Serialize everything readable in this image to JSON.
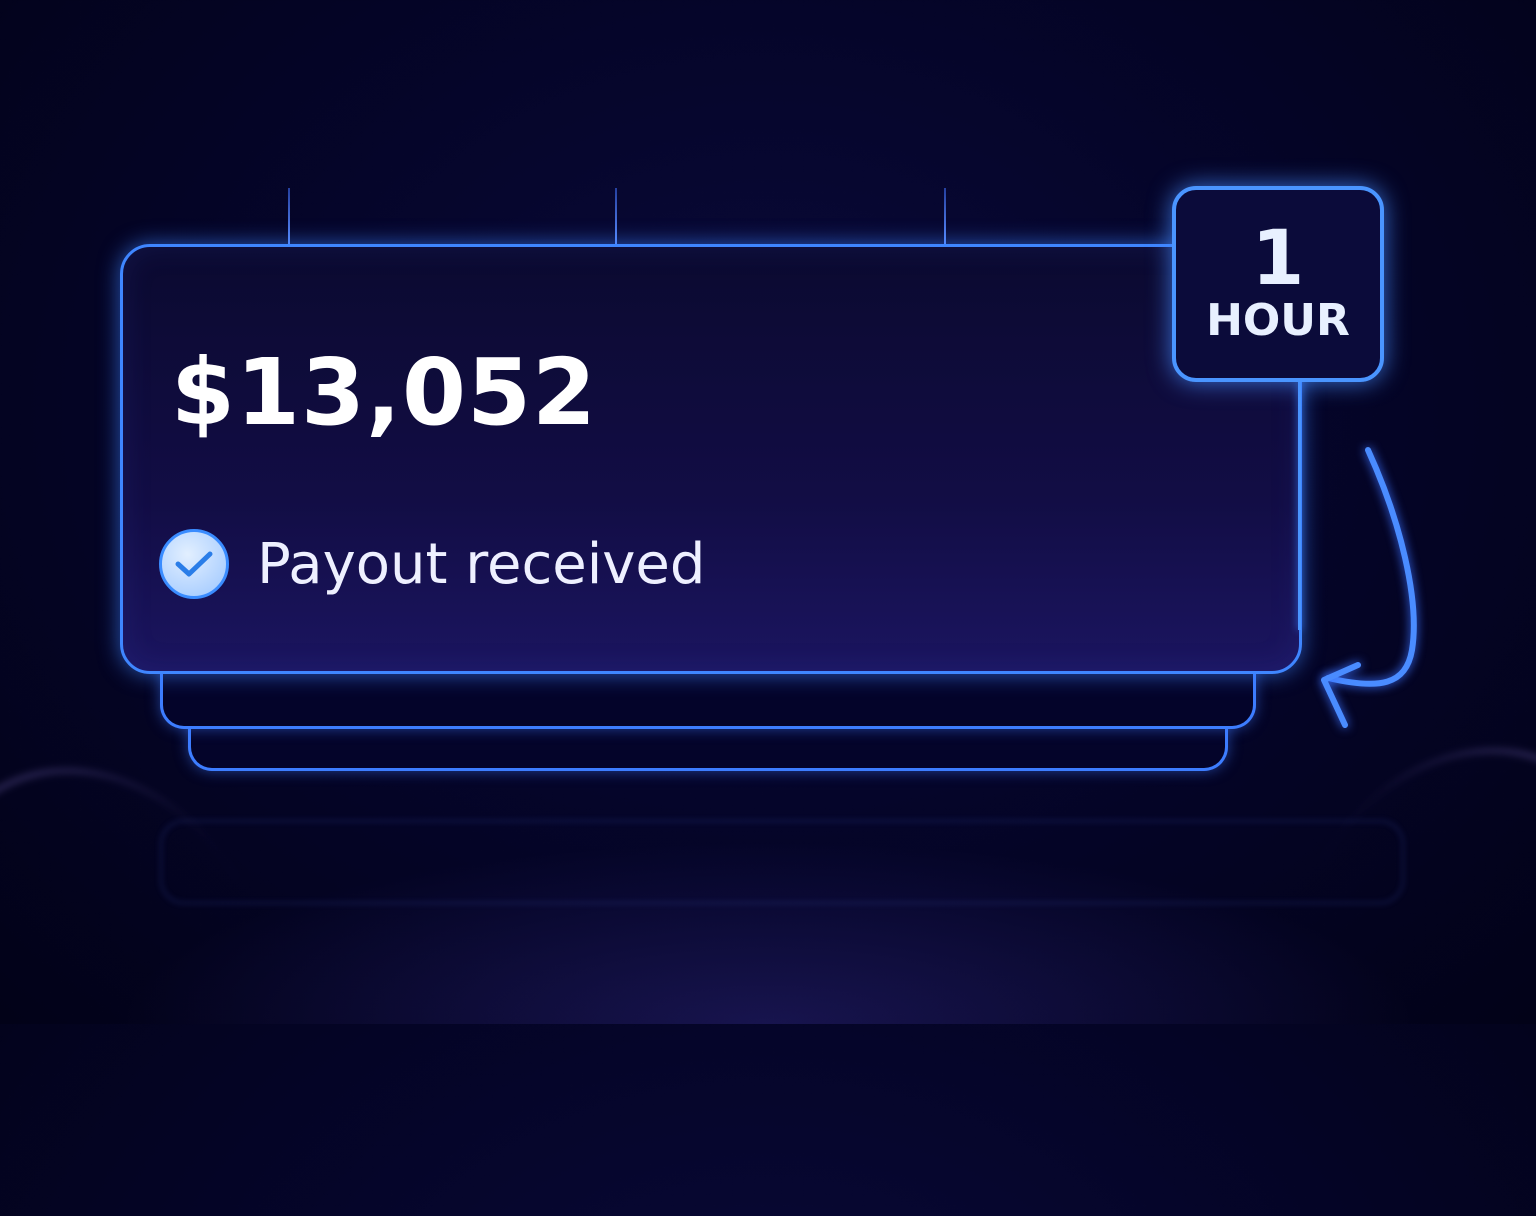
{
  "payout": {
    "amount": "$13,052",
    "status": "Payout received",
    "status_icon": "check-circle-icon"
  },
  "badge": {
    "number": "1",
    "unit": "HOUR"
  },
  "colors": {
    "background": "#05052a",
    "accent": "#3f86ff",
    "text": "#ffffff"
  }
}
